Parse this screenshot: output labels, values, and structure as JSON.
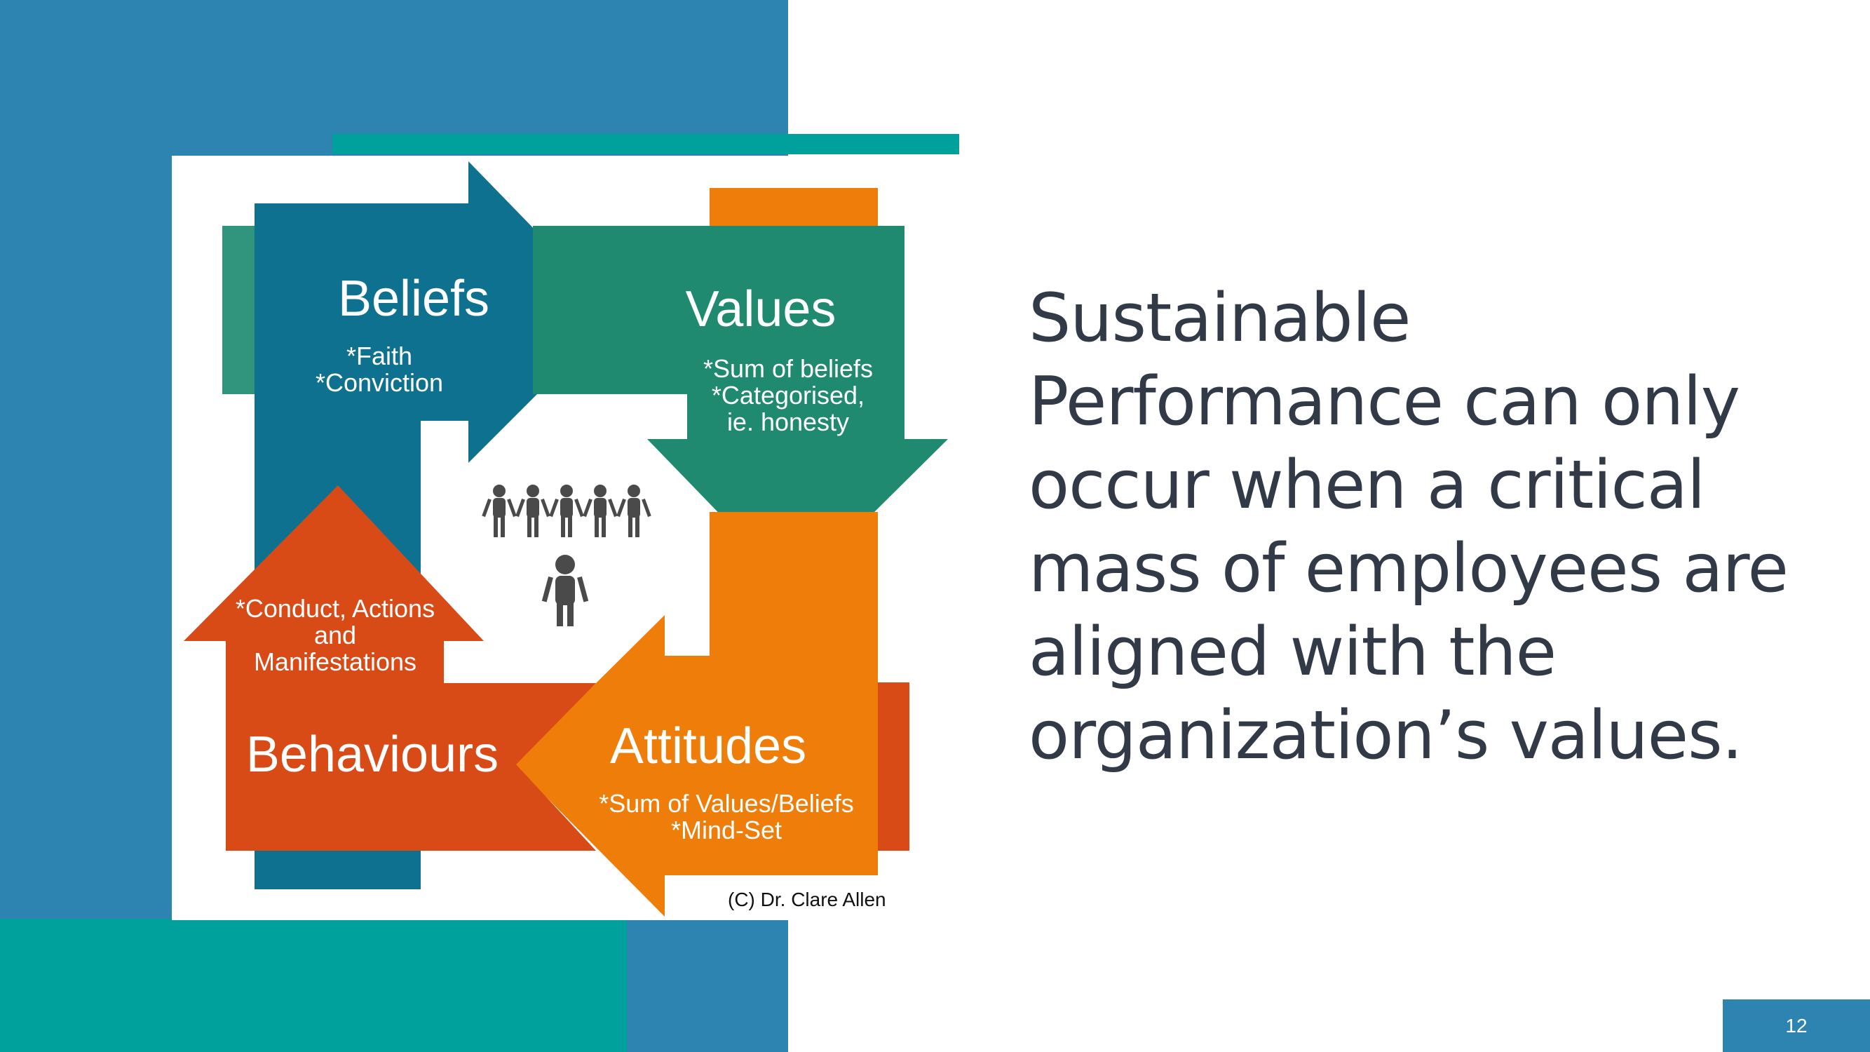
{
  "slide": {
    "headline": "Sustainable Performance can only occur when a critical mass of employees are aligned with the organization’s values.",
    "page_number": "12"
  },
  "diagram": {
    "beliefs": {
      "title": "Beliefs",
      "line1": "*Faith",
      "line2": "*Conviction"
    },
    "values": {
      "title": "Values",
      "line1": "*Sum of beliefs",
      "line2": "*Categorised,",
      "line3": "ie. honesty"
    },
    "attitudes": {
      "title": "Attitudes",
      "line1": "*Sum of Values/Beliefs",
      "line2": "*Mind-Set"
    },
    "behaviours": {
      "title": "Behaviours",
      "line1": "*Conduct, Actions",
      "line2": "and",
      "line3": "Manifestations"
    },
    "copyright": "(C) Dr. Clare Allen"
  },
  "colors": {
    "beliefs": "#0f7190",
    "values": "#1f8a70",
    "attitudes": "#ef7d09",
    "behaviours": "#d84a16",
    "people": "#4a4a4a",
    "background_blue": "#2d84b0",
    "background_teal": "#00a19c",
    "headline_text": "#333a47"
  }
}
